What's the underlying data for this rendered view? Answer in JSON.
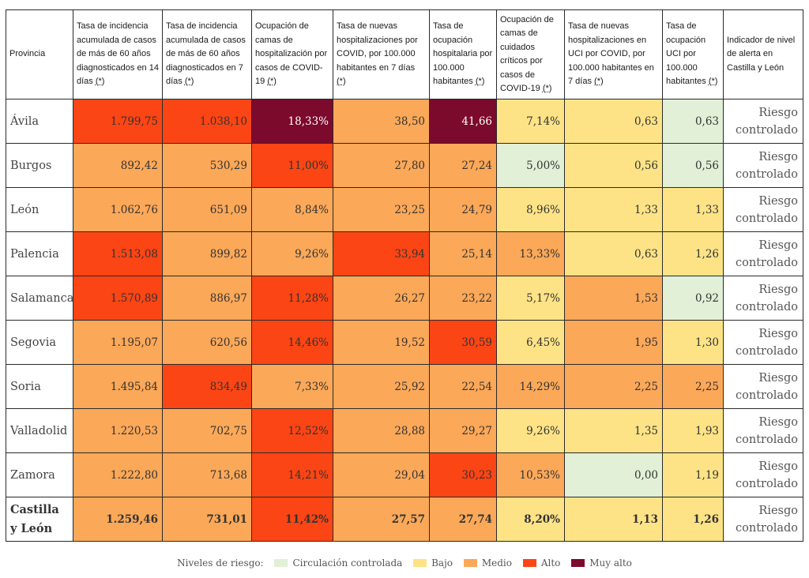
{
  "colors": {
    "green": "#e1f0d6",
    "yellow": "#fde386",
    "orange": "#fba858",
    "red": "#fc4514",
    "dark": "#7c0a2c"
  },
  "table": {
    "headers": {
      "provincia": "Provincia",
      "h1": "Tasa de incidencia acumulada de casos de más de 60 años diagnosticados en 14 días",
      "h2": "Tasa de incidencia acumulada de casos de más de 60 años diagnosticados en 7 días",
      "h3": "Ocupación de camas de hospitalización por casos de COVID-19",
      "h4": "Tasa de nuevas hospitalizaciones por COVID, por 100.000 habitantes en 7 días",
      "h5": "Tasa de ocupación hospitalaria por 100.000 habitantes",
      "h6": "Ocupación de camas de cuidados críticos por casos de COVID-19",
      "h7": "Tasa de nuevas hospitalizaciones en UCI por COVID, por 100.000 habitantes en 7 días",
      "h8": "Tasa de ocupación UCI por 100.000 habitantes",
      "indicador": "Indicador de nivel de alerta en Castilla y León",
      "asterisk": "(*)"
    },
    "rows": [
      {
        "provincia": "Ávila",
        "v": [
          "1.799,75",
          "1.038,10",
          "18,33%",
          "38,50",
          "41,66",
          "7,14%",
          "0,63",
          "0,63"
        ],
        "alert": "Riesgo controlado"
      },
      {
        "provincia": "Burgos",
        "v": [
          "892,42",
          "530,29",
          "11,00%",
          "27,80",
          "27,24",
          "5,00%",
          "0,56",
          "0,56"
        ],
        "alert": "Riesgo controlado"
      },
      {
        "provincia": "León",
        "v": [
          "1.062,76",
          "651,09",
          "8,84%",
          "23,25",
          "24,79",
          "8,96%",
          "1,33",
          "1,33"
        ],
        "alert": "Riesgo controlado"
      },
      {
        "provincia": "Palencia",
        "v": [
          "1.513,08",
          "899,82",
          "9,26%",
          "33,94",
          "25,14",
          "13,33%",
          "0,63",
          "1,26"
        ],
        "alert": "Riesgo controlado"
      },
      {
        "provincia": "Salamanca",
        "v": [
          "1.570,89",
          "886,97",
          "11,28%",
          "26,27",
          "23,22",
          "5,17%",
          "1,53",
          "0,92"
        ],
        "alert": "Riesgo controlado"
      },
      {
        "provincia": "Segovia",
        "v": [
          "1.195,07",
          "620,56",
          "14,46%",
          "19,52",
          "30,59",
          "6,45%",
          "1,95",
          "1,30"
        ],
        "alert": "Riesgo controlado"
      },
      {
        "provincia": "Soria",
        "v": [
          "1.495,84",
          "834,49",
          "7,33%",
          "25,92",
          "22,54",
          "14,29%",
          "2,25",
          "2,25"
        ],
        "alert": "Riesgo controlado"
      },
      {
        "provincia": "Valladolid",
        "v": [
          "1.220,53",
          "702,75",
          "12,52%",
          "28,88",
          "29,27",
          "9,26%",
          "1,35",
          "1,93"
        ],
        "alert": "Riesgo controlado"
      },
      {
        "provincia": "Zamora",
        "v": [
          "1.222,80",
          "713,68",
          "14,21%",
          "29,04",
          "30,23",
          "10,53%",
          "0,00",
          "1,19"
        ],
        "alert": "Riesgo controlado"
      },
      {
        "provincia": "Castilla y León",
        "v": [
          "1.259,46",
          "731,01",
          "11,42%",
          "27,57",
          "27,74",
          "8,20%",
          "1,13",
          "1,26"
        ],
        "alert": "Riesgo controlado"
      }
    ]
  },
  "legend": {
    "title": "Niveles de riesgo:",
    "items": [
      "Circulación controlada",
      "Bajo",
      "Medio",
      "Alto",
      "Muy alto"
    ]
  }
}
